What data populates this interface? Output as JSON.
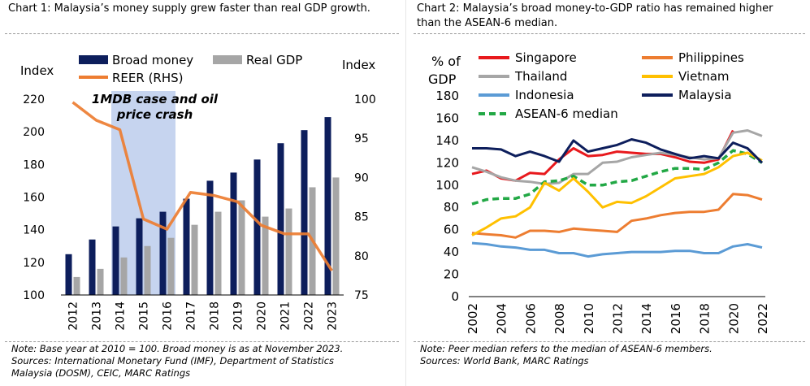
{
  "left": {
    "title": "Chart 1: Malaysia’s money supply grew faster than real GDP growth.",
    "note_line1": "Note: Base year at 2010 = 100. Broad money is as at November 2023.",
    "note_line2": "Sources: International Monetary Fund (IMF), Department of Statistics",
    "note_line3": "Malaysia (DOSM), CEIC, MARC Ratings"
  },
  "right": {
    "title": "Chart 2: Malaysia’s broad money-to-GDP ratio has remained higher than the ASEAN-6 median.",
    "note_line1": "Note: Peer median refers to the median of ASEAN-6 members.",
    "note_line2": "Sources: World Bank, MARC Ratings"
  },
  "chart_data": [
    {
      "type": "bar",
      "title": "Chart 1: Malaysia’s money supply grew faster than real GDP growth.",
      "ylabel": "Index",
      "y2label": "Index",
      "ylim": [
        100,
        220
      ],
      "yticks": [
        100,
        120,
        140,
        160,
        180,
        200,
        220
      ],
      "y2lim": [
        75,
        100
      ],
      "y2ticks": [
        75,
        80,
        85,
        90,
        95,
        100
      ],
      "categories": [
        "2012",
        "2013",
        "2014",
        "2015",
        "2016",
        "2017",
        "2018",
        "2019",
        "2020",
        "2021",
        "2022",
        "2023"
      ],
      "series": [
        {
          "name": "Broad money",
          "kind": "bar",
          "axis": "left",
          "color": "#0d1e5c",
          "values": [
            125,
            134,
            142,
            147,
            151,
            159,
            170,
            175,
            183,
            193,
            201,
            209
          ]
        },
        {
          "name": "Real GDP",
          "kind": "bar",
          "axis": "left",
          "color": "#a6a6a6",
          "values": [
            111,
            116,
            123,
            130,
            135,
            143,
            151,
            158,
            148,
            153,
            166,
            172
          ]
        },
        {
          "name": "REER (RHS)",
          "kind": "line",
          "axis": "right",
          "color": "#ed7d31",
          "values": [
            99.6,
            97.3,
            96.1,
            84.7,
            83.4,
            88.1,
            87.7,
            86.9,
            83.9,
            82.8,
            82.8,
            78.1
          ]
        }
      ],
      "annotation": {
        "text_line1": "1MDB case and oil",
        "text_line2": "price crash",
        "from": "2014",
        "to": "2016",
        "color": "#c6d4ef"
      },
      "legend": "top"
    },
    {
      "type": "line",
      "title": "Chart 2: Malaysia’s broad money-to-GDP ratio has remained higher than the ASEAN-6 median.",
      "ylabel_line1": "% of",
      "ylabel_line2": "GDP",
      "ylim": [
        0,
        180
      ],
      "yticks": [
        0,
        20,
        40,
        60,
        80,
        100,
        120,
        140,
        160,
        180
      ],
      "xlim": [
        2002,
        2022
      ],
      "xticks": [
        2002,
        2004,
        2006,
        2008,
        2010,
        2012,
        2014,
        2016,
        2018,
        2020,
        2022
      ],
      "x": [
        2002,
        2003,
        2004,
        2005,
        2006,
        2007,
        2008,
        2009,
        2010,
        2011,
        2012,
        2013,
        2014,
        2015,
        2016,
        2017,
        2018,
        2019,
        2020,
        2021,
        2022
      ],
      "series": [
        {
          "name": "Singapore",
          "color": "#e8191d",
          "dashed": false,
          "values": [
            110,
            113,
            106,
            104,
            111,
            110,
            123,
            133,
            126,
            127,
            130,
            129,
            128,
            128,
            125,
            121,
            120,
            123,
            149,
            null,
            null
          ]
        },
        {
          "name": "Thailand",
          "color": "#a6a6a6",
          "dashed": false,
          "values": [
            116,
            112,
            107,
            104,
            103,
            101,
            102,
            110,
            110,
            120,
            121,
            125,
            127,
            129,
            127,
            125,
            123,
            124,
            147,
            149,
            144
          ]
        },
        {
          "name": "Indonesia",
          "color": "#5b9bd5",
          "dashed": false,
          "values": [
            48,
            47,
            45,
            44,
            42,
            42,
            39,
            39,
            36,
            38,
            39,
            40,
            40,
            40,
            41,
            41,
            39,
            39,
            45,
            47,
            44
          ]
        },
        {
          "name": "ASEAN-6 median",
          "color": "#22a845",
          "dashed": true,
          "values": [
            83,
            87,
            88,
            88,
            92,
            103,
            104,
            108,
            100,
            100,
            103,
            104,
            108,
            112,
            115,
            115,
            114,
            120,
            131,
            128,
            120
          ]
        },
        {
          "name": "Philippines",
          "color": "#ed7d31",
          "dashed": false,
          "values": [
            57,
            56,
            55,
            53,
            59,
            59,
            58,
            61,
            60,
            59,
            58,
            68,
            70,
            73,
            75,
            76,
            76,
            78,
            92,
            91,
            87
          ]
        },
        {
          "name": "Vietnam",
          "color": "#ffc000",
          "dashed": false,
          "values": [
            55,
            62,
            70,
            72,
            80,
            102,
            95,
            106,
            94,
            80,
            85,
            84,
            90,
            98,
            106,
            108,
            110,
            116,
            126,
            129,
            122
          ]
        },
        {
          "name": "Malaysia",
          "color": "#0d1e5c",
          "dashed": false,
          "values": [
            133,
            133,
            132,
            126,
            130,
            126,
            121,
            140,
            130,
            133,
            136,
            141,
            138,
            132,
            128,
            124,
            126,
            124,
            138,
            133,
            120
          ]
        }
      ],
      "legend": "top"
    }
  ]
}
